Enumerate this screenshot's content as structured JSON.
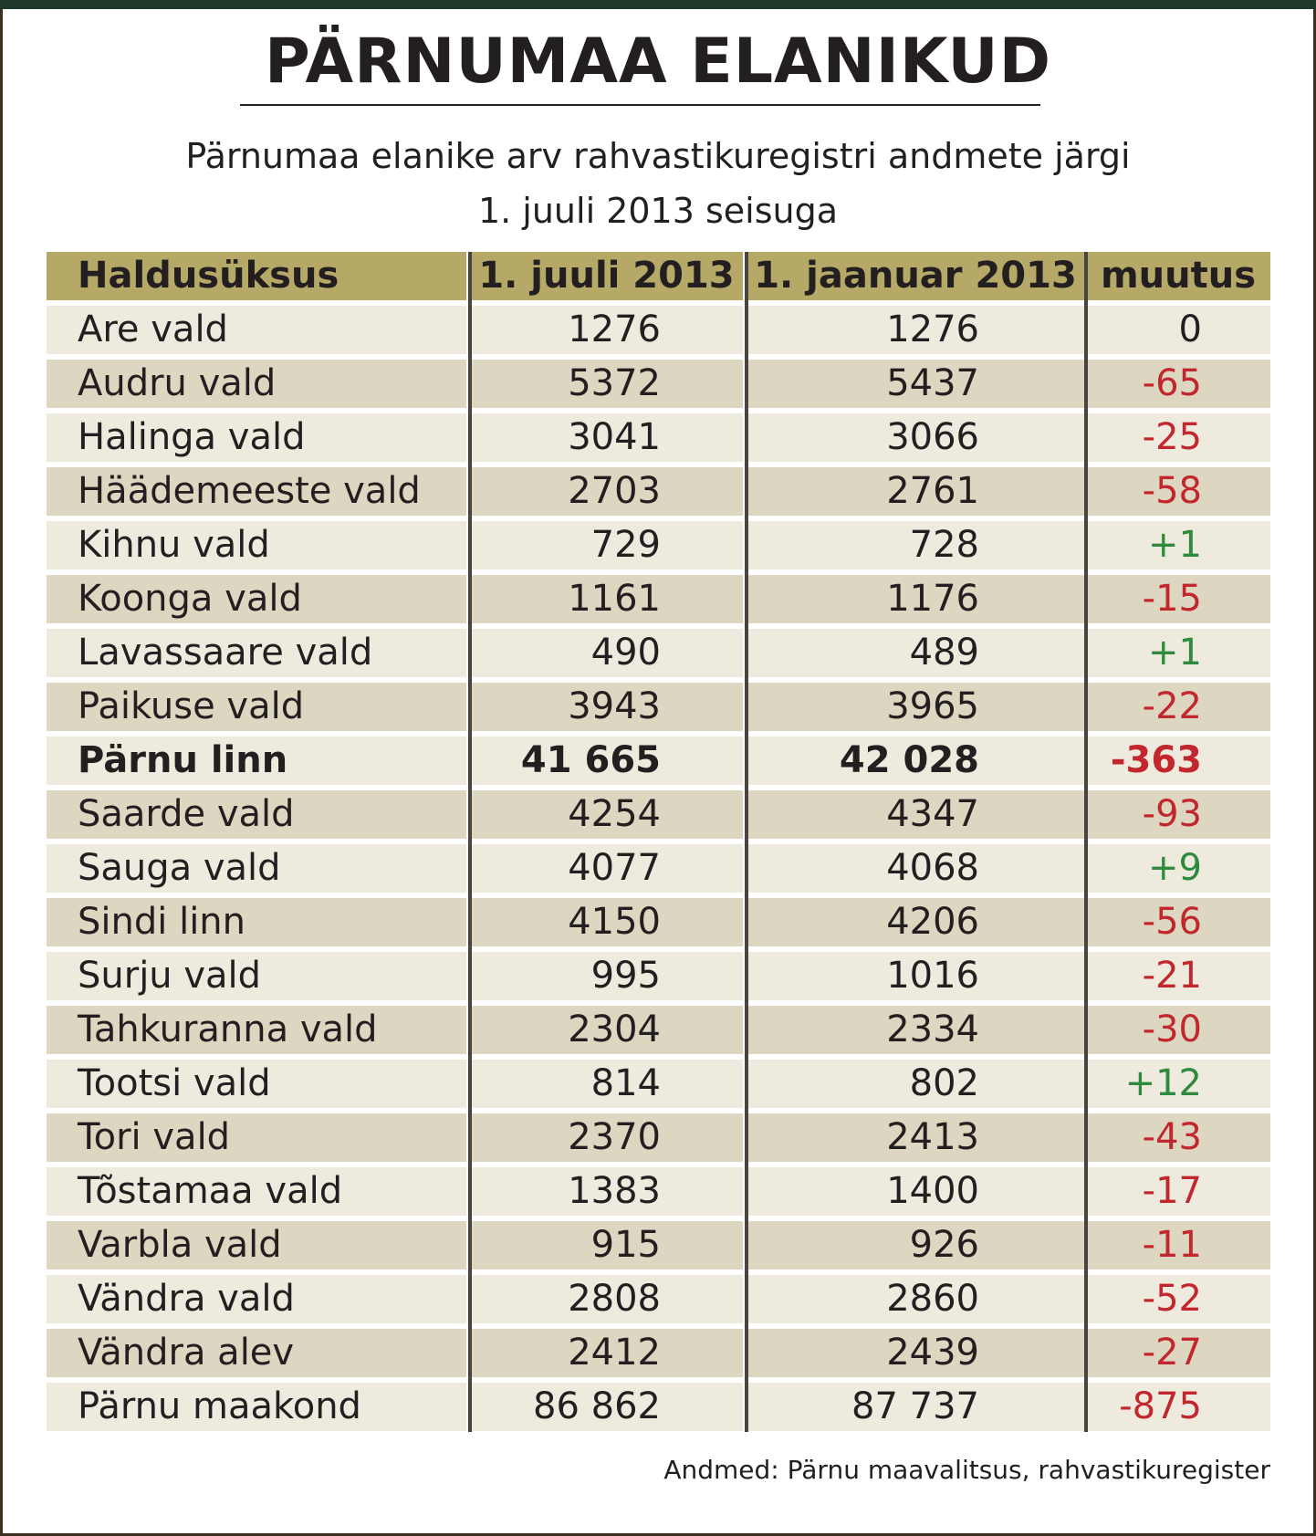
{
  "title": "PÄRNUMAA ELANIKUD",
  "subtitle_line1": "Pärnumaa elanike arv rahvastikuregistri andmete järgi",
  "subtitle_line2": "1. juuli 2013 seisuga",
  "colors": {
    "header_bg": "#b6a866",
    "row_light": "#eeeade",
    "row_dark": "#ddd6c1",
    "negative": "#c1272d",
    "positive": "#2e8b3d"
  },
  "table": {
    "headers": [
      "Haldusüksus",
      "1. juuli 2013",
      "1. jaanuar 2013",
      "muutus"
    ],
    "rows": [
      {
        "unit": "Are vald",
        "jul": "1276",
        "jan": "1276",
        "change": "0"
      },
      {
        "unit": "Audru vald",
        "jul": "5372",
        "jan": "5437",
        "change": "-65"
      },
      {
        "unit": "Halinga vald",
        "jul": "3041",
        "jan": "3066",
        "change": "-25"
      },
      {
        "unit": "Häädemeeste vald",
        "jul": "2703",
        "jan": "2761",
        "change": "-58"
      },
      {
        "unit": "Kihnu vald",
        "jul": "729",
        "jan": "728",
        "change": "+1"
      },
      {
        "unit": "Koonga vald",
        "jul": "1161",
        "jan": "1176",
        "change": "-15"
      },
      {
        "unit": "Lavassaare vald",
        "jul": "490",
        "jan": "489",
        "change": "+1"
      },
      {
        "unit": "Paikuse vald",
        "jul": "3943",
        "jan": "3965",
        "change": "-22"
      },
      {
        "unit": "Pärnu linn",
        "jul": "41 665",
        "jan": "42 028",
        "change": "-363",
        "bold": true
      },
      {
        "unit": "Saarde vald",
        "jul": "4254",
        "jan": "4347",
        "change": "-93"
      },
      {
        "unit": "Sauga vald",
        "jul": "4077",
        "jan": "4068",
        "change": "+9"
      },
      {
        "unit": "Sindi linn",
        "jul": "4150",
        "jan": "4206",
        "change": "-56"
      },
      {
        "unit": "Surju vald",
        "jul": "995",
        "jan": "1016",
        "change": "-21"
      },
      {
        "unit": "Tahkuranna vald",
        "jul": "2304",
        "jan": "2334",
        "change": "-30"
      },
      {
        "unit": "Tootsi vald",
        "jul": "814",
        "jan": "802",
        "change": "+12"
      },
      {
        "unit": "Tori vald",
        "jul": "2370",
        "jan": "2413",
        "change": "-43"
      },
      {
        "unit": "Tõstamaa vald",
        "jul": "1383",
        "jan": "1400",
        "change": "-17"
      },
      {
        "unit": "Varbla vald",
        "jul": "915",
        "jan": "926",
        "change": "-11"
      },
      {
        "unit": "Vändra vald",
        "jul": "2808",
        "jan": "2860",
        "change": "-52"
      },
      {
        "unit": "Vändra alev",
        "jul": "2412",
        "jan": "2439",
        "change": "-27"
      },
      {
        "unit": "Pärnu maakond",
        "jul": "86 862",
        "jan": "87 737",
        "change": "-875"
      }
    ]
  },
  "source": "Andmed: Pärnu maavalitsus, rahvastikuregister"
}
